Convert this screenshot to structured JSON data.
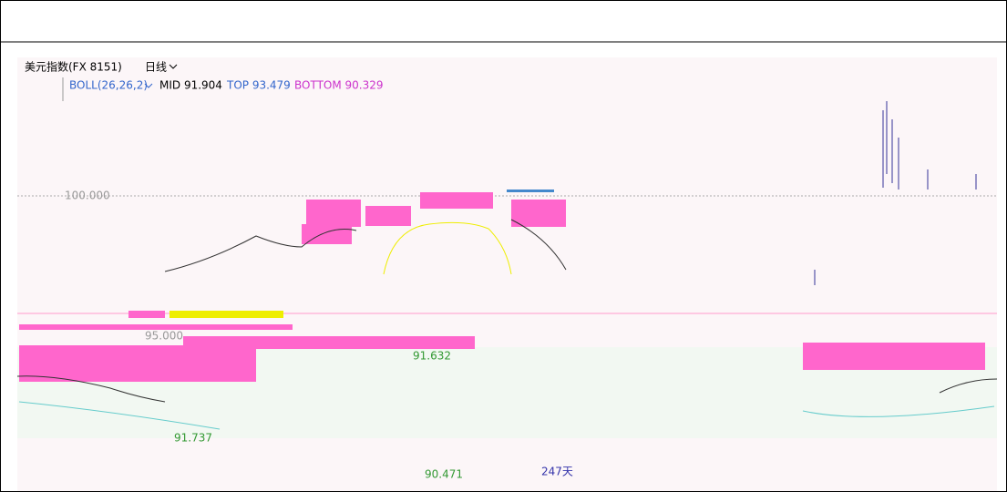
{
  "toolbar": {
    "symbol": "美元指数(FX 8151)",
    "period": "日线"
  },
  "indicator": {
    "name": "BOLL(26,26,2)",
    "mid": "MID 91.904",
    "top": "TOP 93.479",
    "bottom": "BOTTOM 90.329"
  },
  "price_labels": [
    "100.000",
    "95.000",
    "91.632",
    "91.737",
    "90.471"
  ],
  "span_label": "247天"
}
